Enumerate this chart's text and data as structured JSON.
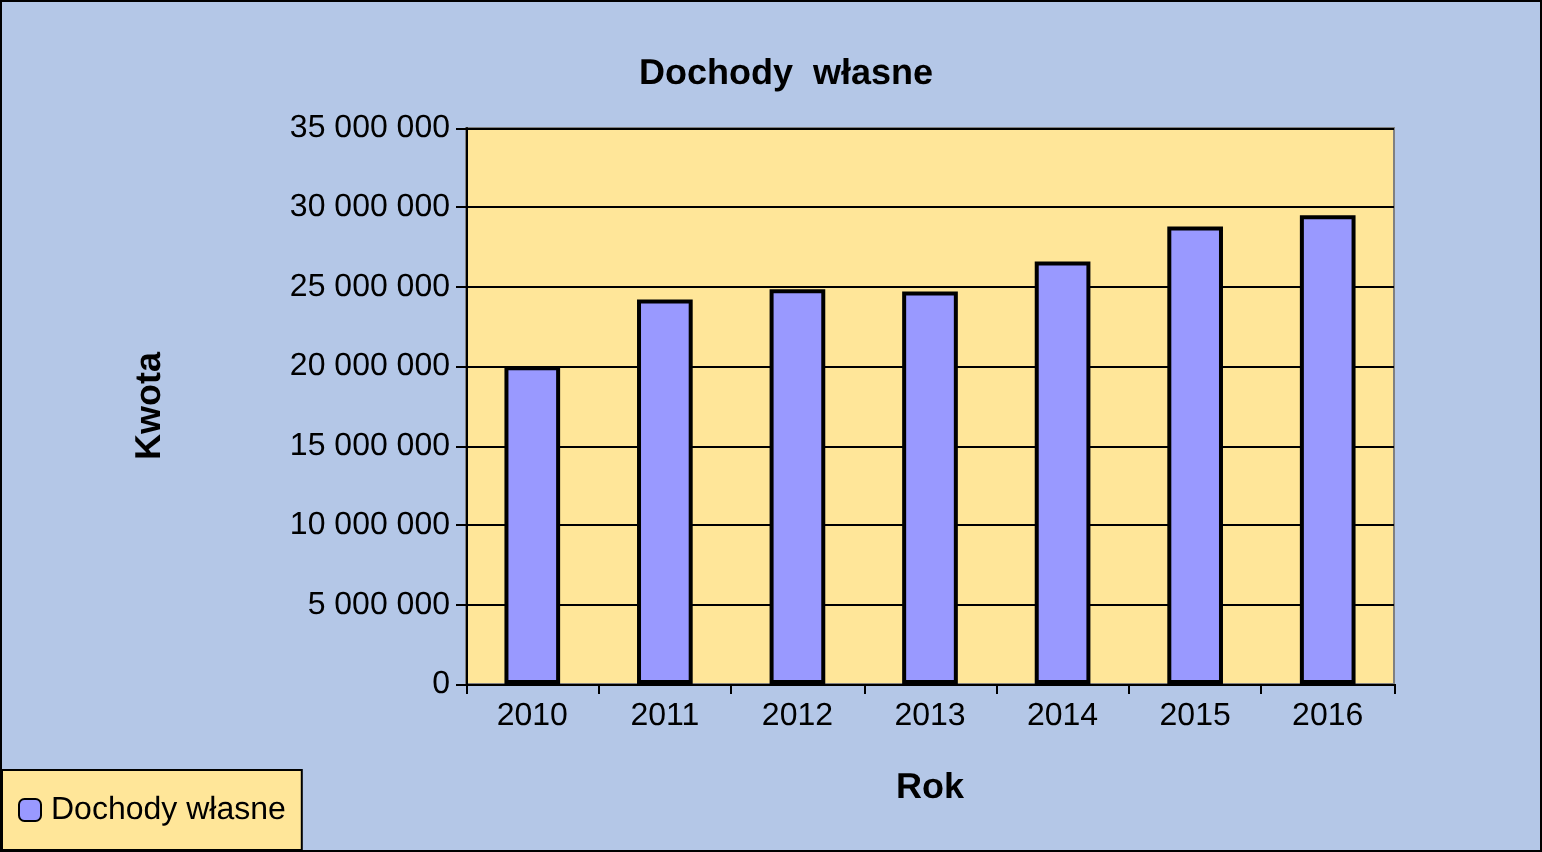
{
  "chart_data": {
    "type": "bar",
    "title": "Dochody  własne",
    "xlabel": "Rok",
    "ylabel": "Kwota",
    "categories": [
      "2010",
      "2011",
      "2012",
      "2013",
      "2014",
      "2015",
      "2016"
    ],
    "series": [
      {
        "name": "Dochody własne",
        "color": "#9999ff",
        "values": [
          20000000,
          24200000,
          24850000,
          24700000,
          26600000,
          28800000,
          29500000
        ]
      }
    ],
    "ylim": [
      0,
      35000000
    ],
    "yticks": [
      {
        "value": 0,
        "label": "0"
      },
      {
        "value": 5000000,
        "label": "5 000 000"
      },
      {
        "value": 10000000,
        "label": "10 000 000"
      },
      {
        "value": 15000000,
        "label": "15 000 000"
      },
      {
        "value": 20000000,
        "label": "20 000 000"
      },
      {
        "value": 25000000,
        "label": "25 000 000"
      },
      {
        "value": 30000000,
        "label": "30 000 000"
      },
      {
        "value": 35000000,
        "label": "35 000 000"
      }
    ],
    "grid": "y",
    "legend": "bottom left"
  }
}
